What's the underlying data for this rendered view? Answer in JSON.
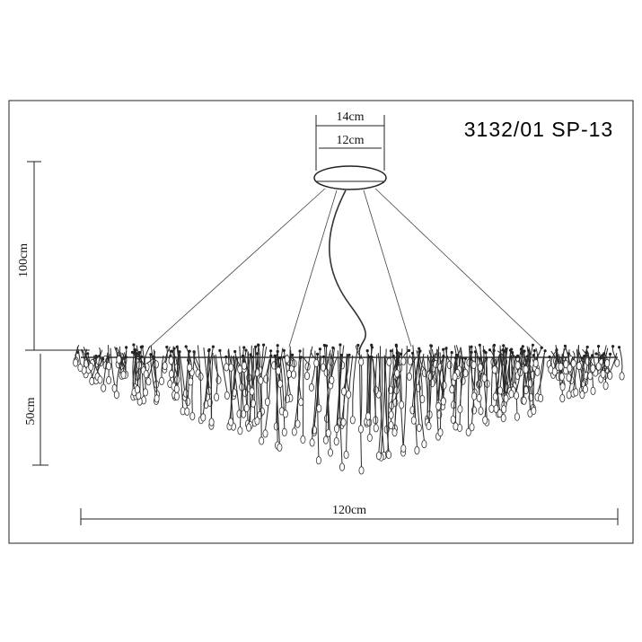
{
  "title": "3132/01 SP-13",
  "dimensions": {
    "canopy_outer": "14cm",
    "canopy_inner": "12cm",
    "suspension_height": "100cm",
    "body_height": "50cm",
    "width": "120cm"
  }
}
